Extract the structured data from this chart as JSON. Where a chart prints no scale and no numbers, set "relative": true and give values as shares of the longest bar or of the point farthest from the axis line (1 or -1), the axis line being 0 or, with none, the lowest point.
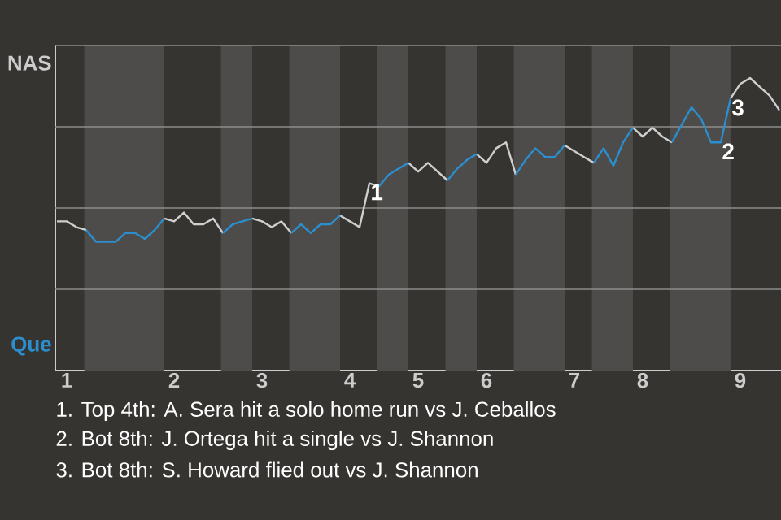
{
  "chart_data": {
    "type": "line",
    "relative": true,
    "categories": [
      null,
      "1",
      null,
      null,
      null,
      null,
      null,
      null,
      null,
      null,
      null,
      null,
      "2",
      null,
      null,
      null,
      null,
      null,
      null,
      null,
      null,
      "3",
      null,
      null,
      null,
      null,
      null,
      null,
      null,
      null,
      "4",
      null,
      null,
      null,
      null,
      null,
      null,
      "5",
      null,
      null,
      null,
      null,
      null,
      null,
      "6",
      null,
      null,
      null,
      null,
      null,
      null,
      null,
      null,
      "7",
      null,
      null,
      null,
      null,
      null,
      null,
      "8",
      null,
      null,
      null,
      null,
      null,
      null,
      null,
      null,
      null,
      "9",
      null,
      null,
      null,
      null
    ],
    "series": [
      {
        "color": "#cfcfcf",
        "values": [
          0.51,
          0.51,
          0.49,
          0.48,
          null,
          null,
          null,
          null,
          null,
          null,
          null,
          0.52,
          0.51,
          0.54,
          0.5,
          0.5,
          0.52,
          0.47,
          null,
          null,
          0.52,
          0.51,
          0.49,
          0.51,
          0.47,
          null,
          null,
          null,
          null,
          0.53,
          0.51,
          0.49,
          0.64,
          0.63,
          null,
          null,
          0.71,
          0.68,
          0.71,
          0.68,
          0.65,
          null,
          null,
          0.74,
          0.71,
          0.76,
          0.78,
          0.67,
          null,
          null,
          null,
          null,
          0.77,
          0.75,
          0.73,
          0.71,
          null,
          null,
          null,
          0.83,
          0.8,
          0.83,
          0.8,
          0.78,
          null,
          null,
          null,
          null,
          null,
          0.93,
          0.98,
          1,
          0.97,
          0.94,
          0.89
        ]
      },
      {
        "color": "#2b8fcf",
        "values": [
          null,
          null,
          null,
          0.48,
          0.44,
          0.44,
          0.44,
          0.47,
          0.47,
          0.45,
          0.48,
          0.52,
          null,
          null,
          null,
          null,
          null,
          0.47,
          0.5,
          0.51,
          0.52,
          null,
          null,
          null,
          0.47,
          0.5,
          0.47,
          0.5,
          0.5,
          0.53,
          null,
          null,
          null,
          0.63,
          0.67,
          0.69,
          0.71,
          null,
          null,
          null,
          0.65,
          0.69,
          0.72,
          0.74,
          null,
          null,
          null,
          0.67,
          0.72,
          0.76,
          0.73,
          0.73,
          0.77,
          null,
          null,
          0.71,
          0.76,
          0.7,
          0.78,
          0.83,
          null,
          null,
          null,
          0.78,
          0.84,
          0.9,
          0.86,
          0.78,
          0.78,
          0.93,
          null,
          null,
          null,
          null,
          null
        ]
      }
    ],
    "grid": "y",
    "annotations": [
      {
        "text": "1",
        "y": 0.64
      },
      {
        "text": "2",
        "y": 0.78
      },
      {
        "text": "3",
        "y": 0.93
      },
      "NAS",
      "Que",
      "1. Top 4th: A. Sera hit a solo home run vs J. Ceballos",
      "2. Bot 8th: J. Ortega hit a single vs J. Shannon",
      "3. Bot 8th: S. Howard flied out vs J. Shannon"
    ]
  }
}
